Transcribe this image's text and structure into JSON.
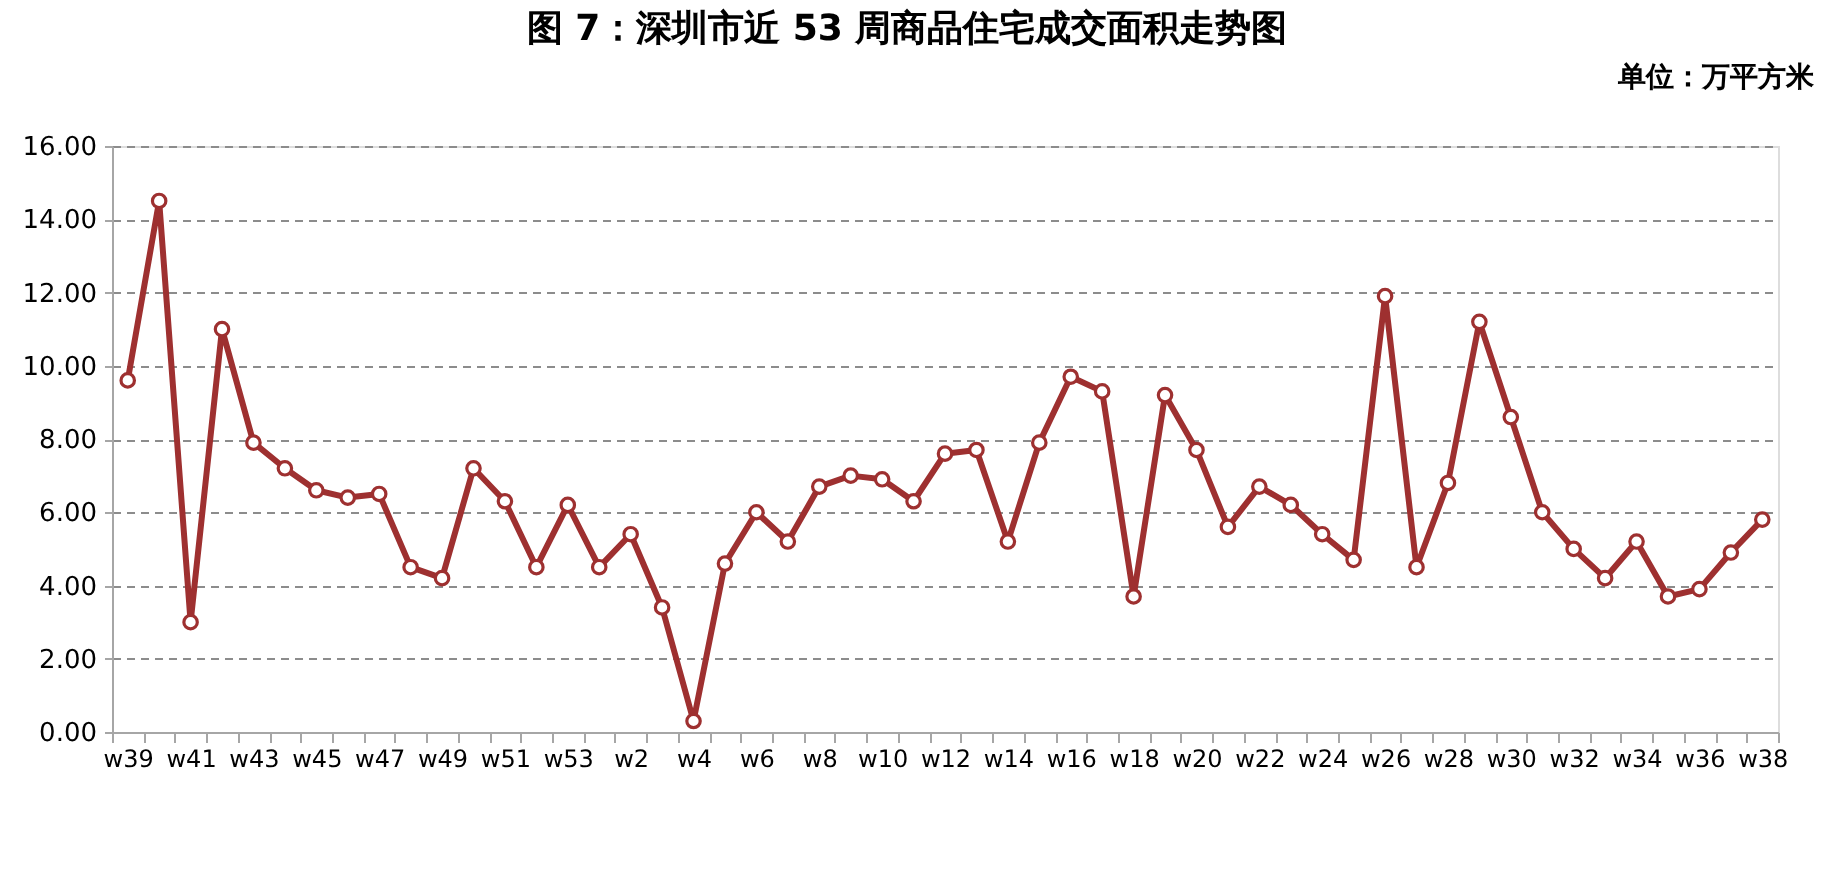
{
  "chart_data": {
    "type": "line",
    "title": "图 7：深圳市近 53 周商品住宅成交面积走势图",
    "annotations": [
      "单位：万平方米"
    ],
    "categories": [
      "w39",
      null,
      "w41",
      null,
      "w43",
      null,
      "w45",
      null,
      "w47",
      null,
      "w49",
      null,
      "w51",
      null,
      "w53",
      null,
      "w2",
      null,
      "w4",
      null,
      "w6",
      null,
      "w8",
      null,
      "w10",
      null,
      "w12",
      null,
      "w14",
      null,
      "w16",
      null,
      "w18",
      null,
      "w20",
      null,
      "w22",
      null,
      "w24",
      null,
      "w26",
      null,
      "w28",
      null,
      "w30",
      null,
      "w32",
      null,
      "w34",
      null,
      "w36",
      null,
      "w38"
    ],
    "series": [
      {
        "color": "#9e3030",
        "values": [
          9.6,
          14.5,
          3.0,
          11.0,
          7.9,
          7.2,
          6.6,
          6.4,
          6.5,
          4.5,
          4.2,
          7.2,
          6.3,
          4.5,
          6.2,
          4.5,
          5.4,
          3.4,
          0.3,
          4.6,
          6.0,
          5.2,
          6.7,
          7.0,
          6.9,
          6.3,
          7.6,
          7.7,
          5.2,
          7.9,
          9.7,
          9.3,
          3.7,
          9.2,
          7.7,
          5.6,
          6.7,
          6.2,
          5.4,
          4.7,
          11.9,
          4.5,
          6.8,
          11.2,
          8.6,
          6.0,
          5.0,
          4.2,
          5.2,
          3.7,
          3.9,
          4.9,
          5.8
        ]
      }
    ],
    "ylim": [
      0,
      16
    ],
    "yticks": [
      {
        "value": 0,
        "label": "0.00"
      },
      {
        "value": 2,
        "label": "2.00"
      },
      {
        "value": 4,
        "label": "4.00"
      },
      {
        "value": 6,
        "label": "6.00"
      },
      {
        "value": 8,
        "label": "8.00"
      },
      {
        "value": 10,
        "label": "10.00"
      },
      {
        "value": 12,
        "label": "12.00"
      },
      {
        "value": 14,
        "label": "14.00"
      },
      {
        "value": 16,
        "label": "16.00"
      }
    ],
    "grid": "y",
    "marker": "circle",
    "line_style": "solid"
  }
}
